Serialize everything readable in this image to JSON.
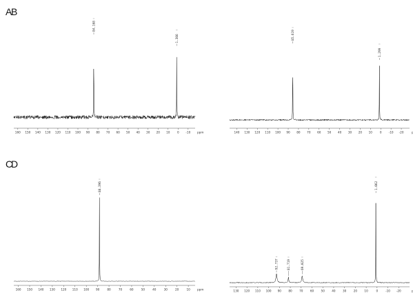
{
  "chart_data": [
    {
      "type": "line",
      "panel": "A",
      "xlabel": "ppm",
      "x_reversed": true,
      "xlim": [
        -17,
        164
      ],
      "ticks": [
        160,
        150,
        140,
        130,
        120,
        110,
        100,
        90,
        80,
        70,
        60,
        50,
        40,
        30,
        20,
        10,
        0,
        -10
      ],
      "tick_labels": [
        "160",
        "150",
        "140",
        "130",
        "120",
        "110",
        "100",
        "90",
        "80",
        "70",
        "60",
        "50",
        "40",
        "30",
        "20",
        "10",
        "0",
        "-10"
      ],
      "noise": 0.09,
      "peaks": [
        {
          "ppm": 84.168,
          "label": "84.168",
          "height": 1.0,
          "width": 0.12
        },
        {
          "ppm": 1.366,
          "label": "1.366",
          "height": 0.86,
          "width": 0.12
        }
      ]
    },
    {
      "type": "line",
      "panel": "B",
      "xlabel": "ppm",
      "x_reversed": true,
      "xlim": [
        -28,
        147
      ],
      "ticks": [
        140,
        130,
        120,
        110,
        100,
        90,
        80,
        70,
        60,
        50,
        40,
        30,
        20,
        10,
        0,
        -10,
        -20
      ],
      "tick_labels": [
        "140",
        "130",
        "120",
        "110",
        "100",
        "90",
        "80",
        "70",
        "60",
        "50",
        "40",
        "30",
        "20",
        "10",
        "0",
        "-10",
        "-20"
      ],
      "noise": 0.035,
      "peaks": [
        {
          "ppm": 85.619,
          "label": "85.619",
          "height": 1.0,
          "width": 0.12
        },
        {
          "ppm": 1.299,
          "label": "1.299",
          "height": 0.78,
          "width": 0.12
        }
      ]
    },
    {
      "type": "line",
      "panel": "C",
      "xlabel": "ppm",
      "x_reversed": true,
      "xlim": [
        4,
        164
      ],
      "ticks": [
        160,
        150,
        140,
        130,
        120,
        110,
        100,
        90,
        80,
        70,
        60,
        50,
        40,
        30,
        20,
        10
      ],
      "tick_labels": [
        "160",
        "150",
        "140",
        "130",
        "120",
        "110",
        "100",
        "90",
        "80",
        "70",
        "60",
        "50",
        "40",
        "30",
        "20",
        "10"
      ],
      "noise": 0.012,
      "peaks": [
        {
          "ppm": 88.396,
          "label": "88.396",
          "height": 1.0,
          "width": 0.12
        }
      ]
    },
    {
      "type": "line",
      "panel": "D",
      "xlabel": "ppm",
      "x_reversed": true,
      "xlim": [
        -30,
        136
      ],
      "ticks": [
        130,
        120,
        110,
        100,
        90,
        80,
        70,
        60,
        50,
        40,
        30,
        20,
        10,
        0,
        -10,
        -20
      ],
      "tick_labels": [
        "130",
        "120",
        "110",
        "100",
        "90",
        "80",
        "70",
        "60",
        "50",
        "40",
        "30",
        "20",
        "10",
        "0",
        "-10",
        "-20"
      ],
      "noise": 0.02,
      "peaks": [
        {
          "ppm": 92.737,
          "label": "92.737",
          "height": 0.1,
          "width": 0.6
        },
        {
          "ppm": 81.719,
          "label": "81.719",
          "height": 0.06,
          "width": 0.4
        },
        {
          "ppm": 69.025,
          "label": "69.025",
          "height": 0.08,
          "width": 0.5
        },
        {
          "ppm": 1.062,
          "label": "1.062",
          "height": 1.0,
          "width": 0.12
        }
      ]
    }
  ]
}
